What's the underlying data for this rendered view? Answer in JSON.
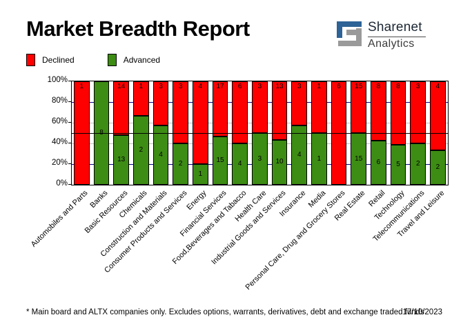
{
  "header": {
    "title": "Market Breadth Report"
  },
  "logo": {
    "name": "Sharenet",
    "division": "Analytics",
    "mark_blue": "#2d6396",
    "mark_gray": "#9a9a9a"
  },
  "legend": {
    "items": [
      {
        "label": "Declined",
        "color": "#ff0000"
      },
      {
        "label": "Advanced",
        "color": "#3d8c14"
      }
    ]
  },
  "chart_data": {
    "type": "bar",
    "stacked": true,
    "units": "percent_of_total",
    "title": "Market Breadth Report",
    "categories": [
      "Automobiles and Parts",
      "Banks",
      "Basic Resources",
      "Chemicals",
      "Construction and Materials",
      "Consumer Products and Services",
      "Energy",
      "Financial Services",
      "Food,Beverages and Tabacco",
      "Health Care",
      "Industrial Goods and Services",
      "Insurance",
      "Media",
      "Personal Care, Drug and Grocery Stores",
      "Real Estate",
      "Retail",
      "Technology",
      "Telecommunications",
      "Travel and Leisure"
    ],
    "series": [
      {
        "name": "Declined",
        "color": "#ff0000",
        "values": [
          1,
          0,
          14,
          1,
          3,
          3,
          4,
          17,
          6,
          3,
          13,
          3,
          1,
          6,
          15,
          8,
          8,
          3,
          4
        ]
      },
      {
        "name": "Advanced",
        "color": "#3d8c14",
        "values": [
          0,
          8,
          13,
          2,
          4,
          2,
          1,
          15,
          4,
          3,
          10,
          4,
          1,
          0,
          15,
          6,
          5,
          2,
          2
        ]
      }
    ],
    "y_ticks": [
      "0%",
      "20%",
      "40%",
      "60%",
      "80%",
      "100%"
    ],
    "ylim": [
      0,
      100
    ],
    "grid": {
      "major_lines": [
        20,
        80
      ],
      "major_color": "#000080",
      "minor_lines": [
        40,
        60
      ],
      "minor_color": "#c0c0c0",
      "reference_line": 50,
      "reference_color": "#000000"
    },
    "legend_position": "top-left",
    "bar_value_labels": "company counts shown inside segments"
  },
  "footer": {
    "note": "* Main board and ALTX companies only. Excludes options, warrants, derivatives, debt and exchange traded funds",
    "date": "17/10/2023"
  }
}
